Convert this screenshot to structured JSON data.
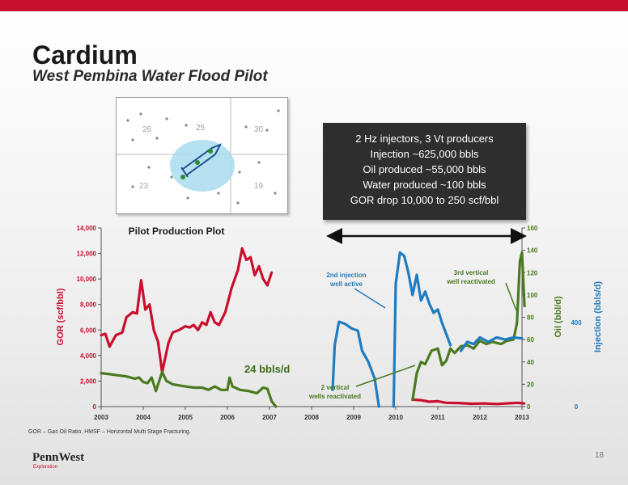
{
  "slide": {
    "title": "Cardium",
    "subtitle": "West Pembina Water Flood Pilot",
    "footnote": "GOR – Gas Oil Ratio, HMSF – Horizontal Multi Stage Fracturing.",
    "company": "PennWest",
    "company_sub": "Exploration",
    "page_number": "18",
    "brand_color": "#c8102e"
  },
  "map": {
    "section_labels": [
      "26",
      "25",
      "30",
      "23",
      "19"
    ]
  },
  "infobox": {
    "lines": [
      "2 Hz injectors, 3 Vt producers",
      "Injection ~625,000 bbls",
      "Oil produced ~55,000 bbls",
      "Water produced ~100 bbls",
      "GOR drop 10,000 to 250 scf/bbl"
    ]
  },
  "chart_data": {
    "type": "line",
    "title": "Pilot Production Plot",
    "xlabel": "",
    "x_ticks": [
      "2003",
      "2004",
      "2005",
      "2006",
      "2007",
      "2008",
      "2009",
      "2010",
      "2011",
      "2012",
      "2013"
    ],
    "xlim": [
      2003,
      2013
    ],
    "y_left": {
      "label": "GOR (scf/bbl)",
      "ticks": [
        "0",
        "2,000",
        "4,000",
        "6,000",
        "8,000",
        "10,000",
        "12,000",
        "14,000"
      ],
      "lim": [
        0,
        14000
      ],
      "color": "#c8102e"
    },
    "y_right_oil": {
      "label": "Oil (bbl/d)",
      "ticks": [
        "0",
        "20",
        "40",
        "60",
        "80",
        "100",
        "120",
        "140",
        "160"
      ],
      "lim": [
        0,
        160
      ],
      "color": "#4a7a1e"
    },
    "y_right_injection": {
      "label": "Injection (bbls/d)",
      "ticks": [
        "0",
        "400"
      ],
      "color": "#1f7cc0"
    },
    "grid": false,
    "series": [
      {
        "axis": "gor",
        "color": "#c8102e",
        "segments": [
          [
            [
              2003.0,
              5600
            ],
            [
              2003.1,
              5700
            ],
            [
              2003.2,
              4700
            ],
            [
              2003.35,
              5600
            ],
            [
              2003.5,
              5800
            ],
            [
              2003.6,
              7000
            ],
            [
              2003.75,
              7400
            ],
            [
              2003.85,
              7300
            ],
            [
              2003.95,
              9900
            ],
            [
              2004.05,
              7600
            ],
            [
              2004.15,
              8000
            ],
            [
              2004.25,
              6000
            ],
            [
              2004.35,
              5100
            ],
            [
              2004.45,
              2700
            ],
            [
              2004.6,
              5000
            ],
            [
              2004.7,
              5800
            ],
            [
              2004.85,
              6000
            ],
            [
              2005.0,
              6300
            ],
            [
              2005.1,
              6200
            ],
            [
              2005.2,
              6400
            ],
            [
              2005.3,
              6000
            ],
            [
              2005.4,
              6600
            ],
            [
              2005.5,
              6400
            ],
            [
              2005.6,
              7400
            ],
            [
              2005.7,
              6600
            ],
            [
              2005.8,
              6400
            ],
            [
              2005.95,
              7400
            ],
            [
              2006.1,
              9300
            ],
            [
              2006.25,
              10700
            ],
            [
              2006.35,
              12400
            ],
            [
              2006.45,
              11500
            ],
            [
              2006.55,
              11700
            ],
            [
              2006.65,
              10300
            ],
            [
              2006.75,
              11000
            ],
            [
              2006.85,
              10000
            ],
            [
              2006.95,
              9500
            ],
            [
              2007.05,
              10500
            ]
          ],
          [
            [
              2010.4,
              550
            ],
            [
              2010.6,
              500
            ],
            [
              2010.8,
              380
            ],
            [
              2011.0,
              420
            ],
            [
              2011.2,
              300
            ],
            [
              2011.5,
              280
            ],
            [
              2011.8,
              220
            ],
            [
              2012.1,
              250
            ],
            [
              2012.4,
              200
            ],
            [
              2012.7,
              260
            ],
            [
              2012.9,
              300
            ],
            [
              2013.05,
              250
            ]
          ]
        ]
      },
      {
        "axis": "oil",
        "color": "#4a7a1e",
        "segments": [
          [
            [
              2003.0,
              30
            ],
            [
              2003.2,
              29
            ],
            [
              2003.4,
              28
            ],
            [
              2003.6,
              27
            ],
            [
              2003.8,
              25
            ],
            [
              2003.9,
              26
            ],
            [
              2004.0,
              22
            ],
            [
              2004.1,
              21
            ],
            [
              2004.2,
              26
            ],
            [
              2004.3,
              14
            ],
            [
              2004.45,
              31
            ],
            [
              2004.55,
              23
            ],
            [
              2004.7,
              20
            ],
            [
              2004.85,
              19
            ],
            [
              2005.0,
              18
            ],
            [
              2005.2,
              17
            ],
            [
              2005.4,
              17
            ],
            [
              2005.55,
              15
            ],
            [
              2005.7,
              18
            ],
            [
              2005.85,
              15
            ],
            [
              2006.0,
              15
            ],
            [
              2006.05,
              26
            ],
            [
              2006.12,
              18
            ],
            [
              2006.3,
              15
            ],
            [
              2006.5,
              14
            ],
            [
              2006.7,
              12
            ],
            [
              2006.85,
              17
            ],
            [
              2006.95,
              16
            ],
            [
              2007.05,
              5
            ],
            [
              2007.15,
              0
            ]
          ],
          [
            [
              2010.4,
              6
            ],
            [
              2010.5,
              30
            ],
            [
              2010.6,
              40
            ],
            [
              2010.7,
              38
            ],
            [
              2010.85,
              50
            ],
            [
              2011.0,
              52
            ],
            [
              2011.1,
              37
            ],
            [
              2011.2,
              41
            ],
            [
              2011.3,
              52
            ],
            [
              2011.4,
              48
            ],
            [
              2011.55,
              54
            ],
            [
              2011.7,
              55
            ],
            [
              2011.85,
              52
            ],
            [
              2012.0,
              59
            ],
            [
              2012.15,
              56
            ],
            [
              2012.3,
              58
            ],
            [
              2012.5,
              56
            ],
            [
              2012.65,
              59
            ],
            [
              2012.8,
              60
            ],
            [
              2012.88,
              75
            ],
            [
              2012.95,
              130
            ],
            [
              2013.0,
              138
            ],
            [
              2013.06,
              90
            ]
          ]
        ]
      },
      {
        "axis": "injection",
        "color": "#1f7cc0",
        "segments": [
          [
            [
              2008.5,
              15
            ],
            [
              2008.55,
              55
            ],
            [
              2008.65,
              76
            ],
            [
              2008.8,
              74
            ],
            [
              2008.95,
              70
            ],
            [
              2009.1,
              68
            ],
            [
              2009.2,
              50
            ],
            [
              2009.35,
              40
            ],
            [
              2009.5,
              25
            ],
            [
              2009.6,
              0
            ]
          ],
          [
            [
              2009.95,
              0
            ],
            [
              2010.0,
              110
            ],
            [
              2010.1,
              138
            ],
            [
              2010.2,
              135
            ],
            [
              2010.3,
              120
            ],
            [
              2010.4,
              100
            ],
            [
              2010.5,
              118
            ],
            [
              2010.6,
              95
            ],
            [
              2010.7,
              103
            ],
            [
              2010.8,
              92
            ],
            [
              2010.9,
              84
            ],
            [
              2011.0,
              87
            ],
            [
              2011.1,
              75
            ],
            [
              2011.2,
              65
            ],
            [
              2011.3,
              55
            ]
          ],
          [
            [
              2011.55,
              50
            ],
            [
              2011.7,
              58
            ],
            [
              2011.85,
              56
            ],
            [
              2012.0,
              62
            ],
            [
              2012.2,
              58
            ],
            [
              2012.4,
              62
            ],
            [
              2012.6,
              60
            ],
            [
              2012.8,
              62
            ],
            [
              2013.0,
              61
            ]
          ]
        ]
      }
    ],
    "annotations": {
      "rate_label": "24 bbls/d",
      "note_second_injection": [
        "2nd injection",
        "well active"
      ],
      "note_third_vertical": [
        "3rd vertical",
        "well reactivated"
      ],
      "note_two_vertical": [
        "2 vertical",
        "wells reactivated"
      ]
    }
  }
}
